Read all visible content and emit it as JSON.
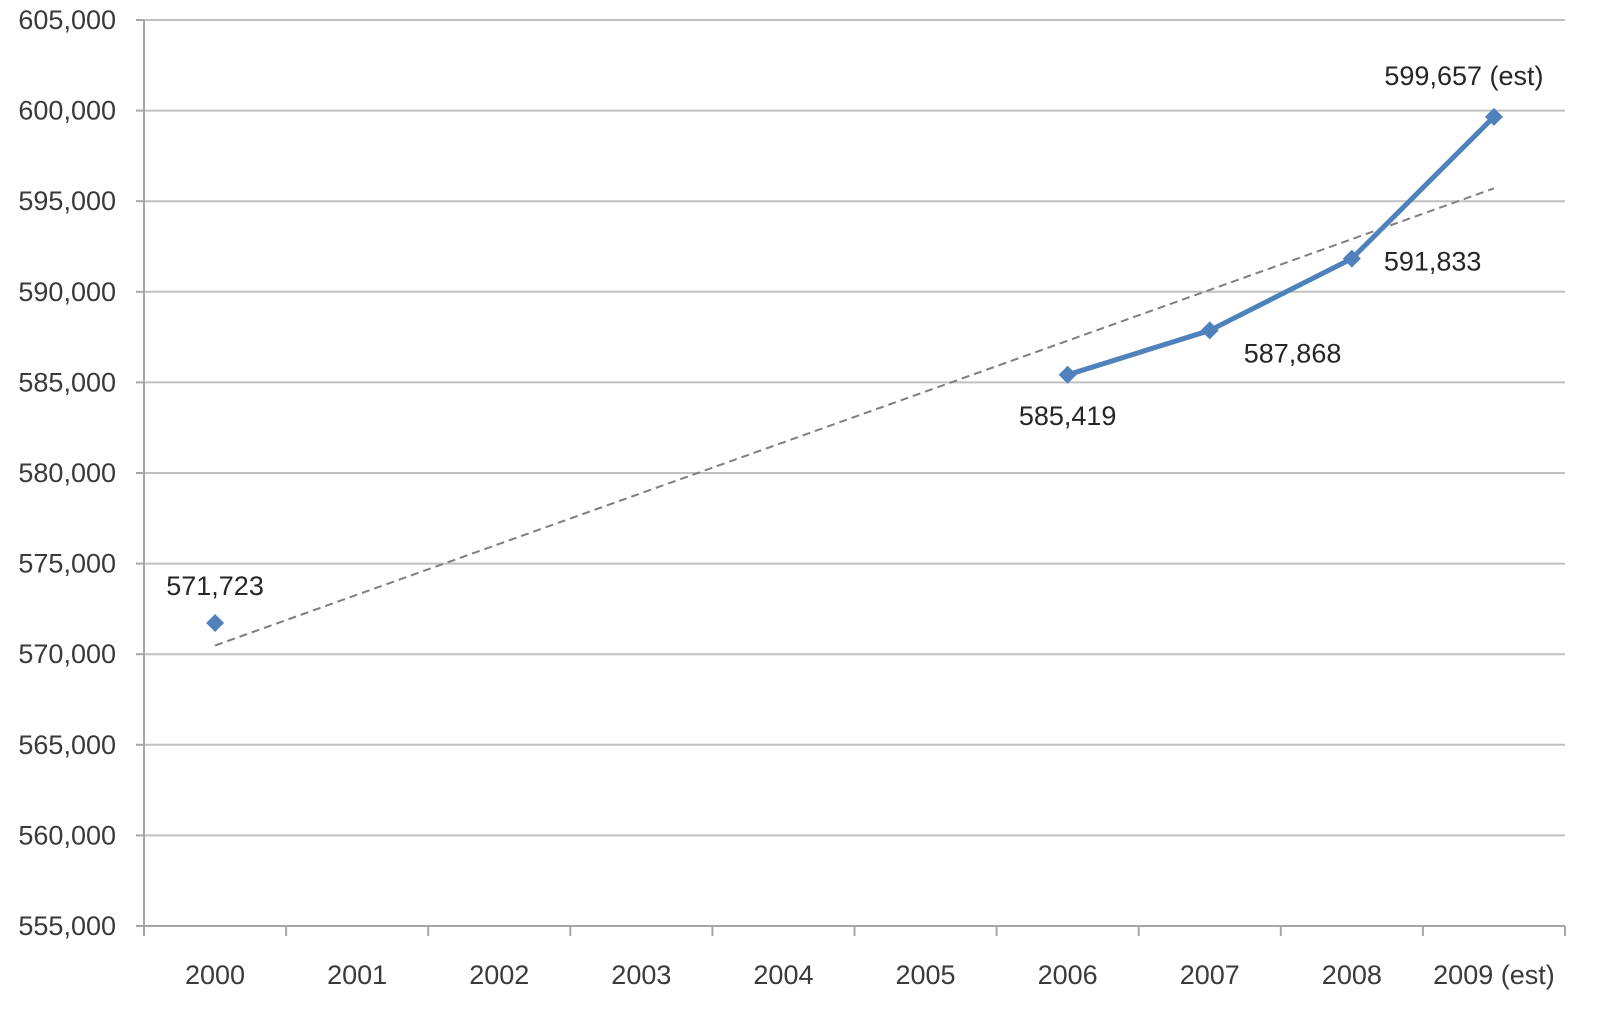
{
  "chart_data": {
    "type": "line",
    "categories": [
      "2000",
      "2001",
      "2002",
      "2003",
      "2004",
      "2005",
      "2006",
      "2007",
      "2008",
      "2009 (est)"
    ],
    "series": [
      {
        "values": [
          571723,
          null,
          null,
          null,
          null,
          null,
          585419,
          587868,
          591833,
          599657
        ],
        "data_labels": [
          "571,723",
          "",
          "",
          "",
          "",
          "",
          "585,419",
          "587,868",
          "591,833",
          "599,657 (est)"
        ],
        "color": "#4f81bd",
        "marker": "diamond"
      }
    ],
    "trendline": {
      "type": "linear",
      "style": "dashed",
      "color": "#7f7f7f"
    },
    "ylim": [
      555000,
      605000
    ],
    "yticks": [
      555000,
      560000,
      565000,
      570000,
      575000,
      580000,
      585000,
      590000,
      595000,
      600000,
      605000
    ],
    "ytick_labels": [
      "555,000",
      "560,000",
      "565,000",
      "570,000",
      "575,000",
      "580,000",
      "585,000",
      "590,000",
      "595,000",
      "600,000",
      "605,000"
    ],
    "grid": true,
    "legend": "none",
    "title": "",
    "xlabel": "",
    "ylabel": ""
  },
  "colors": {
    "gridline": "#c0c0c0",
    "axis": "#a6a6a6",
    "series": "#4f81bd",
    "trend": "#7f7f7f"
  }
}
